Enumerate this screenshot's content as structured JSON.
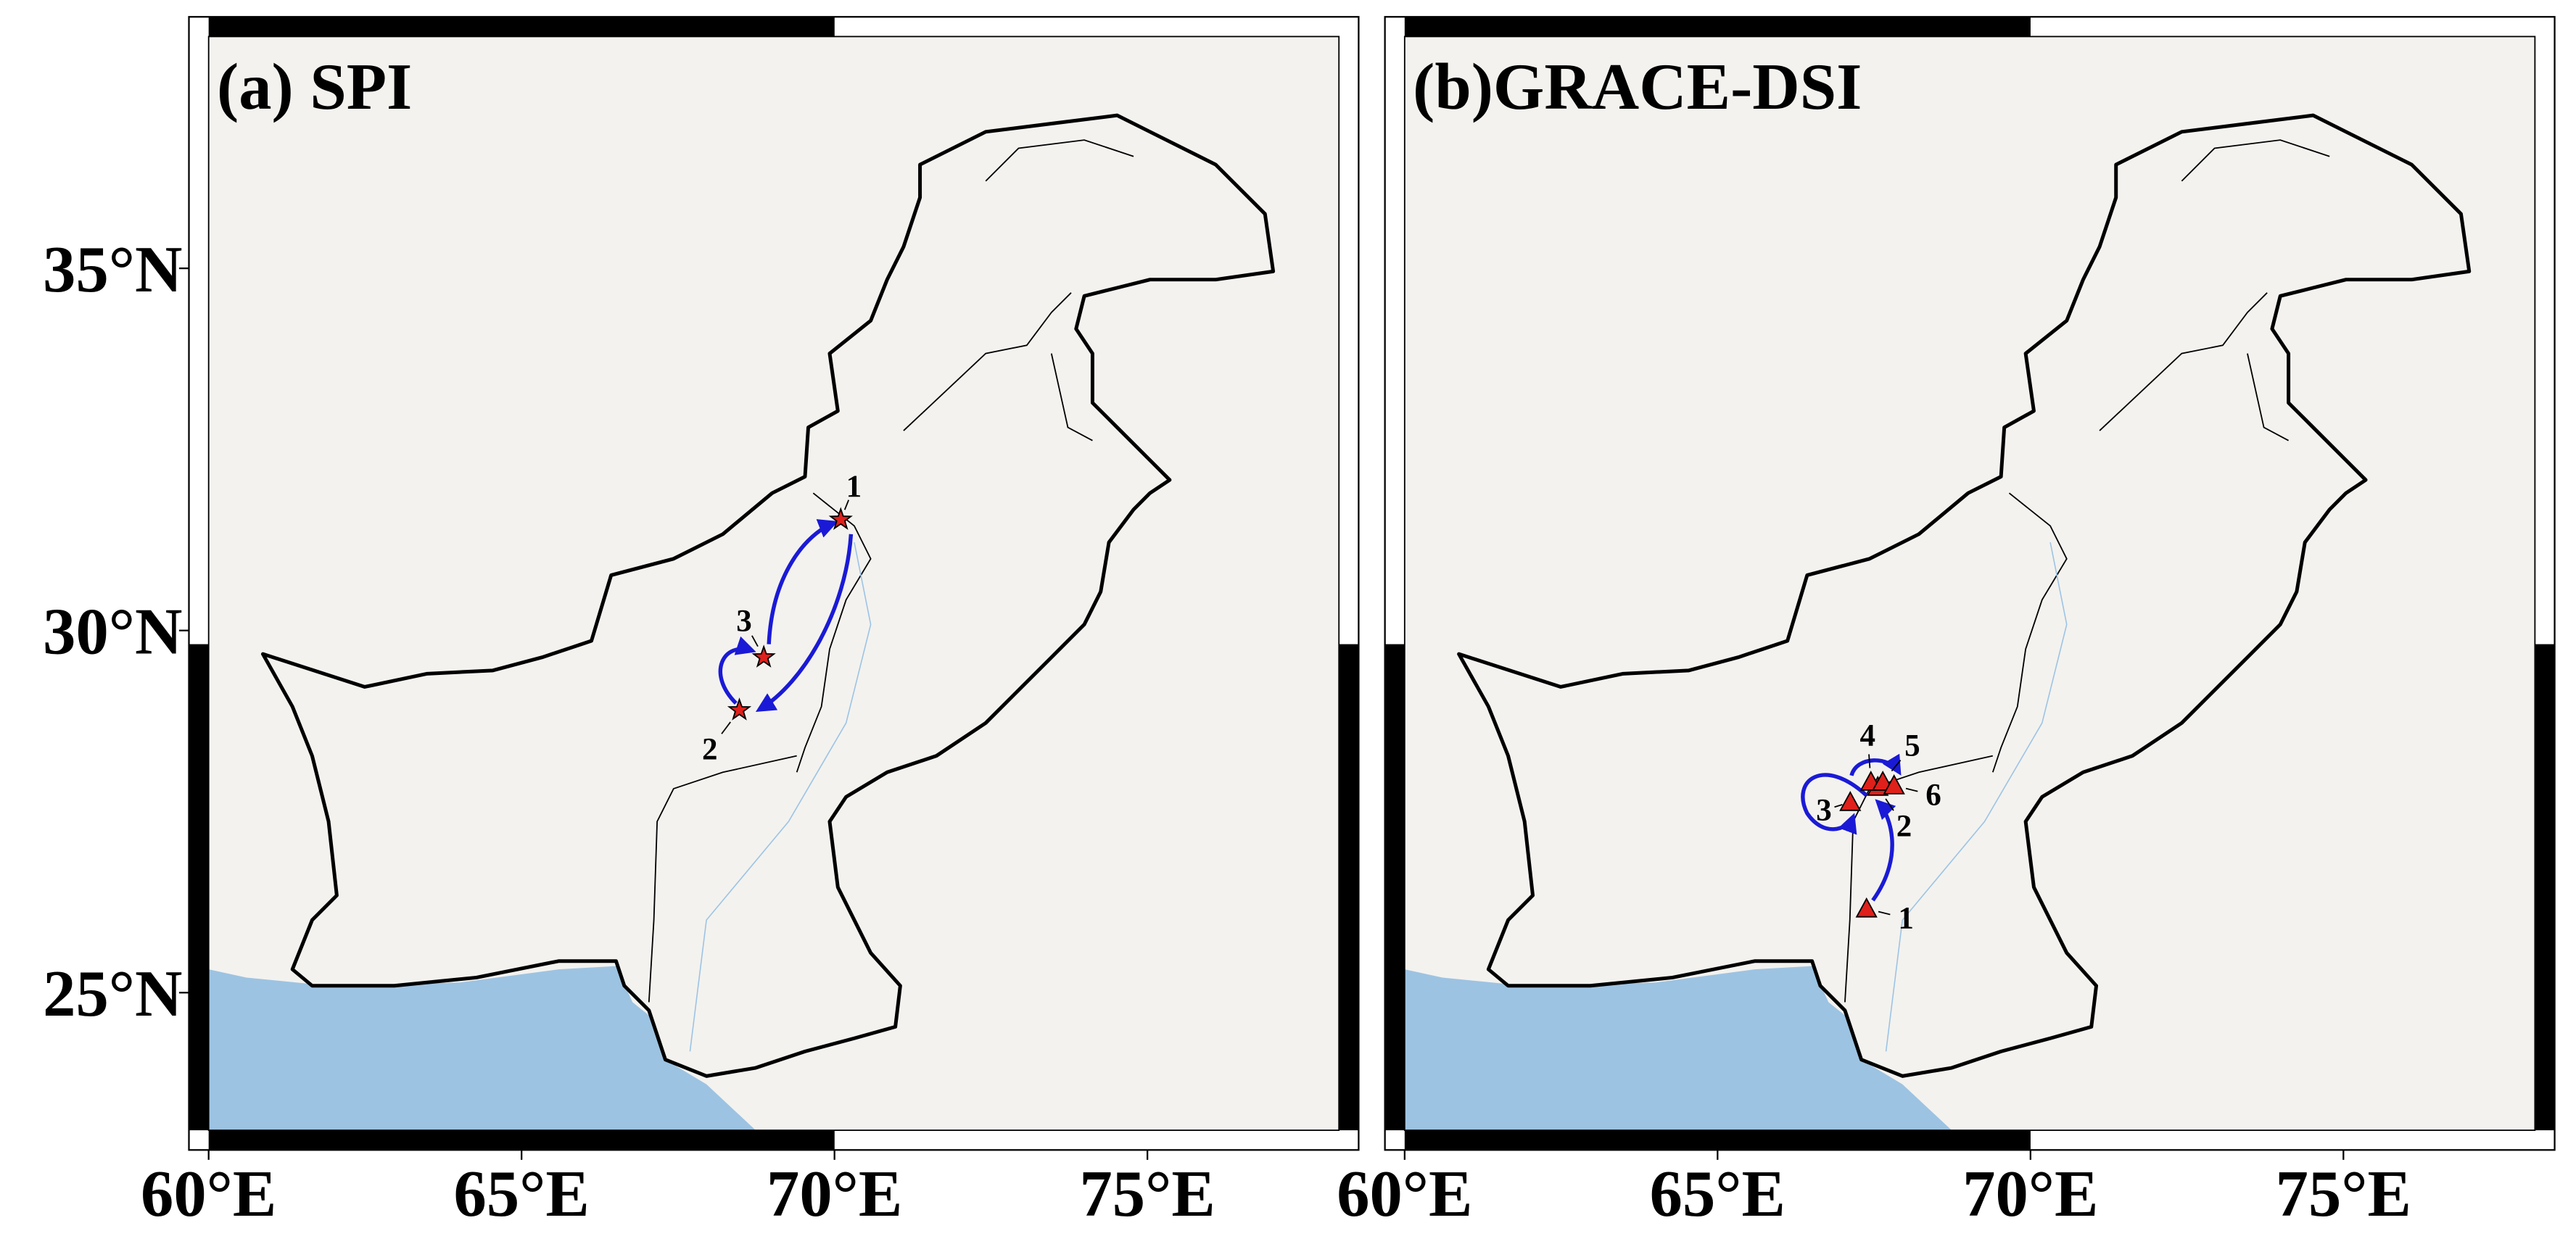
{
  "panels": [
    {
      "title": "(a) SPI",
      "marker": "star",
      "marker_color": "#e0201b",
      "xlim": [
        60,
        78.06
      ],
      "ylim": [
        23.1,
        38.2
      ],
      "xticks": [
        {
          "value": 60,
          "label": "60°E"
        },
        {
          "value": 65,
          "label": "65°E"
        },
        {
          "value": 70,
          "label": "70°E"
        },
        {
          "value": 75,
          "label": "75°E"
        }
      ],
      "yticks": [
        {
          "value": 25,
          "label": "25°N"
        },
        {
          "value": 30,
          "label": "30°N"
        },
        {
          "value": 35,
          "label": "35°N"
        }
      ],
      "points": [
        {
          "label": "1",
          "lon": 70.1,
          "lat": 31.53
        },
        {
          "label": "3",
          "lon": 68.87,
          "lat": 29.63
        },
        {
          "label": "2",
          "lon": 68.48,
          "lat": 28.9
        }
      ]
    },
    {
      "title": "(b)GRACE-DSI",
      "marker": "triangle",
      "marker_color": "#e0201b",
      "xlim": [
        60,
        78.06
      ],
      "ylim": [
        23.1,
        38.2
      ],
      "xticks": [
        {
          "value": 60,
          "label": "60°E"
        },
        {
          "value": 65,
          "label": "65°E"
        },
        {
          "value": 70,
          "label": "70°E"
        },
        {
          "value": 75,
          "label": "75°E"
        }
      ],
      "yticks": [],
      "points": [
        {
          "label": "1",
          "lon": 67.38,
          "lat": 26.16
        },
        {
          "label": "2",
          "lon": 67.56,
          "lat": 27.84
        },
        {
          "label": "3",
          "lon": 67.12,
          "lat": 27.63
        },
        {
          "label": "4",
          "lon": 67.45,
          "lat": 27.91
        },
        {
          "label": "5",
          "lon": 67.64,
          "lat": 27.91
        },
        {
          "label": "6",
          "lon": 67.82,
          "lat": 27.86
        }
      ]
    }
  ]
}
